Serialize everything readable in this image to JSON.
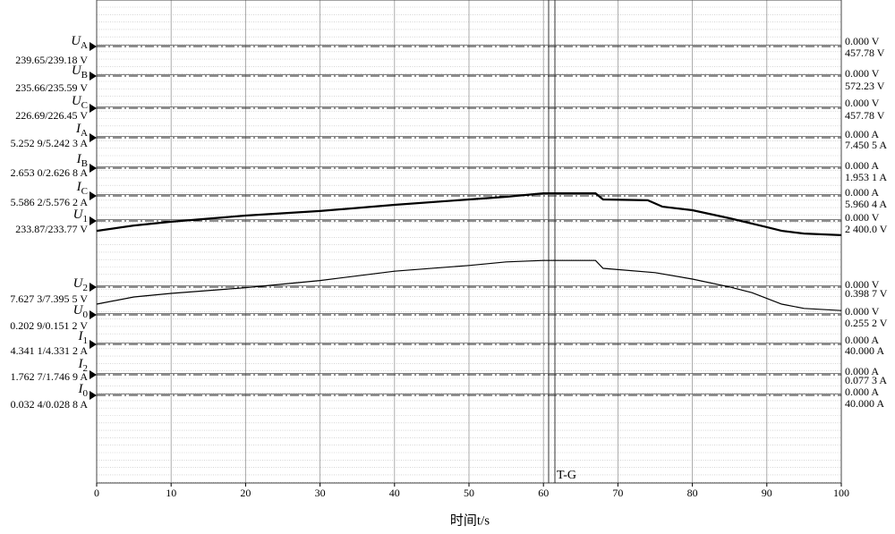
{
  "chart_data": {
    "type": "line",
    "xlabel": "时间t/s",
    "xlim": [
      0,
      100
    ],
    "xticks": [
      0,
      10,
      20,
      30,
      40,
      50,
      60,
      70,
      80,
      90,
      100
    ],
    "grid": true,
    "cursor_label": "T-G",
    "channels": [
      {
        "name": "U",
        "subscript": "A",
        "readout": "239.65/239.18 V",
        "zero_label": "0.000 V",
        "scale_label": "457.78 V"
      },
      {
        "name": "U",
        "subscript": "B",
        "readout": "235.66/235.59 V",
        "zero_label": "0.000 V",
        "scale_label": "572.23 V"
      },
      {
        "name": "U",
        "subscript": "C",
        "readout": "226.69/226.45 V",
        "zero_label": "0.000 V",
        "scale_label": "457.78 V"
      },
      {
        "name": "I",
        "subscript": "A",
        "readout": "5.252 9/5.242 3 A",
        "zero_label": "0.000 A",
        "scale_label": "7.450 5 A"
      },
      {
        "name": "I",
        "subscript": "B",
        "readout": "2.653 0/2.626 8 A",
        "zero_label": "0.000 A",
        "scale_label": "1.953 1 A"
      },
      {
        "name": "I",
        "subscript": "C",
        "readout": "5.586 2/5.576 2 A",
        "zero_label": "0.000 A",
        "scale_label": "5.960 4 A"
      },
      {
        "name": "U",
        "subscript": "1",
        "readout": "233.87/233.77 V",
        "zero_label": "0.000 V",
        "scale_label": "2 400.0 V"
      },
      {
        "name": "U",
        "subscript": "2",
        "readout": "7.627 3/7.395 5 V",
        "zero_label": "0.000 V",
        "scale_label": "0.398 7 V"
      },
      {
        "name": "U",
        "subscript": "0",
        "readout": "0.202 9/0.151 2 V",
        "zero_label": "0.000 V",
        "scale_label": "0.255 2 V"
      },
      {
        "name": "I",
        "subscript": "1",
        "readout": "4.341 1/4.331 2 A",
        "zero_label": "0.000 A",
        "scale_label": "40.000 A"
      },
      {
        "name": "I",
        "subscript": "2",
        "readout": "1.762 7/1.746 9 A",
        "zero_label": "0.000 A",
        "scale_label": "0.077 3 A"
      },
      {
        "name": "I",
        "subscript": "0",
        "readout": "0.032 4/0.028 8 A",
        "zero_label": "0.000 A",
        "scale_label": "40.000 A"
      }
    ],
    "series": [
      {
        "color": "#000000",
        "ylim": [
          232.8,
          234.2
        ],
        "x": [
          0,
          5,
          10,
          20,
          30,
          40,
          50,
          55,
          60,
          67,
          68,
          74,
          76,
          80,
          85,
          90,
          92,
          95,
          100
        ],
        "values": [
          233.03,
          233.17,
          233.27,
          233.43,
          233.55,
          233.71,
          233.85,
          233.92,
          234.01,
          234.01,
          233.85,
          233.83,
          233.66,
          233.57,
          233.36,
          233.13,
          233.03,
          232.96,
          232.92
        ]
      },
      {
        "color": "#000000",
        "ylim": [
          7.0,
          7.8
        ],
        "x": [
          0,
          5,
          10,
          20,
          30,
          40,
          50,
          55,
          60,
          67,
          68,
          75,
          80,
          85,
          88,
          92,
          95,
          100
        ],
        "values": [
          7.15,
          7.25,
          7.3,
          7.38,
          7.48,
          7.61,
          7.69,
          7.74,
          7.76,
          7.76,
          7.65,
          7.59,
          7.5,
          7.39,
          7.31,
          7.15,
          7.09,
          7.06
        ]
      }
    ]
  }
}
